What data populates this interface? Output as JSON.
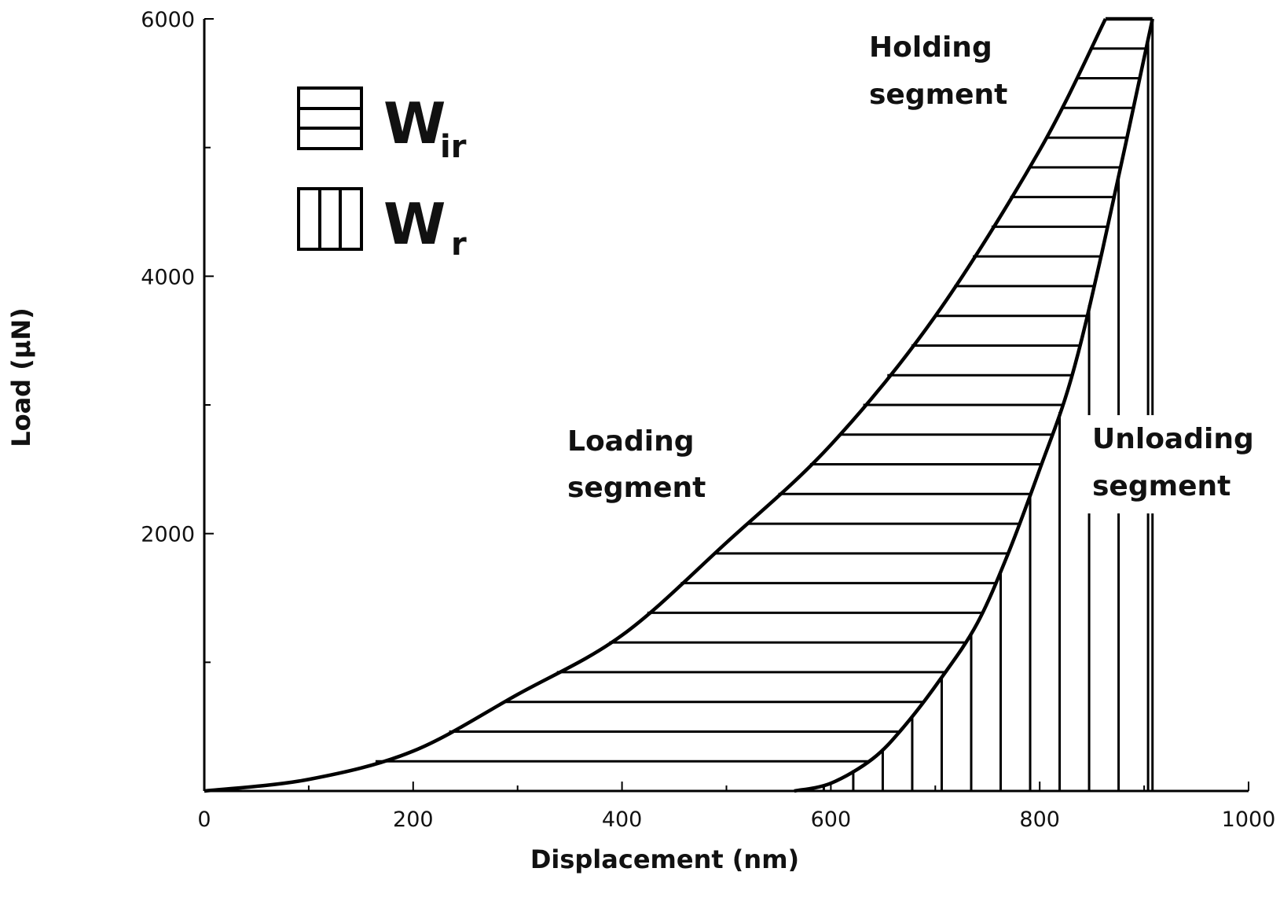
{
  "chart_data": {
    "type": "line",
    "title": "",
    "xlabel": "Displacement (nm)",
    "ylabel": "Load (μN)",
    "xlim": [
      0,
      1000
    ],
    "ylim": [
      0,
      6000
    ],
    "x_ticks": [
      "0",
      "200",
      "400",
      "600",
      "800",
      "1000"
    ],
    "y_ticks": [
      "2000",
      "4000",
      "6000"
    ],
    "grid": false,
    "series": [
      {
        "x": [
          0,
          100,
          200,
          300,
          400,
          500,
          600,
          700,
          800,
          863
        ],
        "y": [
          0,
          90,
          310,
          750,
          1210,
          1930,
          2690,
          3690,
          4980,
          6000
        ]
      },
      {
        "x": [
          863,
          908
        ],
        "y": [
          6000,
          6000
        ]
      },
      {
        "x": [
          908,
          860,
          830,
          800,
          770,
          740,
          705,
          670,
          640,
          600,
          565
        ],
        "y": [
          6000,
          4200,
          3200,
          2500,
          1850,
          1300,
          870,
          500,
          250,
          60,
          0
        ]
      }
    ],
    "annotations": [
      {
        "lines": [
          "Loading",
          "segment"
        ]
      },
      {
        "lines": [
          "Holding",
          "segment"
        ]
      },
      {
        "lines": [
          "Unloading",
          "segment"
        ]
      }
    ],
    "legend": {
      "placement": "top-left",
      "items": [
        {
          "pattern": "horizontal-hatch",
          "main": "W",
          "sub": "ir"
        },
        {
          "pattern": "vertical-hatch",
          "main": "W",
          "sub": "r"
        }
      ]
    }
  }
}
